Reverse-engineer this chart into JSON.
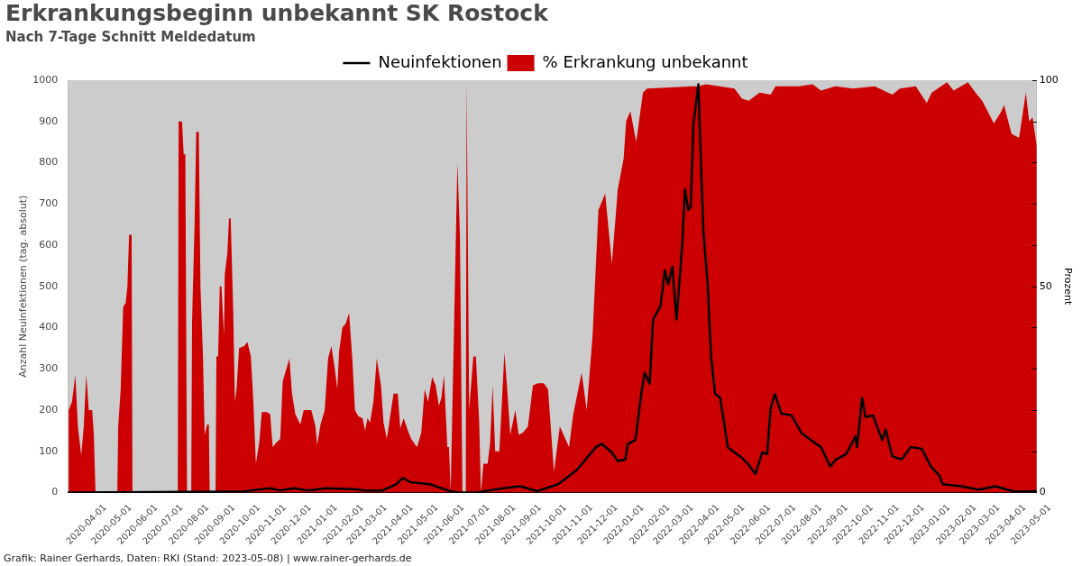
{
  "chart_data": {
    "type": "line",
    "title": "Erkrankungsbeginn unbekannt SK Rostock",
    "subtitle": "Nach 7-Tage Schnitt Meldedatum",
    "ylabel": "Anzahl Neuinfektionen (tag. absolut)",
    "y2label": "Prozent",
    "annotations": [
      "Grafik: Rainer Gerhards, Daten: RKI (Stand: 2023-05-08) | www.rainer-gerhards.de"
    ],
    "xlim": [
      "2020-03-10",
      "2023-05-08"
    ],
    "xticks": [
      "2020-04-01",
      "2020-05-01",
      "2020-06-01",
      "2020-07-01",
      "2020-08-01",
      "2020-09-01",
      "2020-10-01",
      "2020-11-01",
      "2020-12-01",
      "2021-01-01",
      "2021-02-01",
      "2021-03-01",
      "2021-04-01",
      "2021-05-01",
      "2021-06-01",
      "2021-07-01",
      "2021-08-01",
      "2021-09-01",
      "2021-10-01",
      "2021-11-01",
      "2021-12-01",
      "2022-01-01",
      "2022-02-01",
      "2022-03-01",
      "2022-04-01",
      "2022-05-01",
      "2022-06-01",
      "2022-07-01",
      "2022-08-01",
      "2022-09-01",
      "2022-10-01",
      "2022-11-01",
      "2022-12-01",
      "2023-01-01",
      "2023-02-01",
      "2023-03-01",
      "2023-04-01",
      "2023-05-01"
    ],
    "ylim": [
      0,
      1000
    ],
    "yticks": [
      0,
      100,
      200,
      300,
      400,
      500,
      600,
      700,
      800,
      900,
      1000
    ],
    "y2lim": [
      0,
      100
    ],
    "y2ticks": [
      0,
      {
        "value": 10,
        "label": null
      },
      {
        "value": 20,
        "label": null
      },
      {
        "value": 30,
        "label": null
      },
      {
        "value": 40,
        "label": null
      },
      50,
      {
        "value": 60,
        "label": null
      },
      {
        "value": 70,
        "label": null
      },
      {
        "value": 80,
        "label": null
      },
      {
        "value": 90,
        "label": null
      },
      100
    ],
    "legend": "top",
    "marker": "none",
    "grid": false,
    "series": [
      {
        "name": "Neuinfektionen",
        "type": "line",
        "color": "#000000",
        "x": [
          "2020-03-10",
          "2020-10-04",
          "2020-10-15",
          "2020-11-06",
          "2020-11-18",
          "2020-12-04",
          "2020-12-21",
          "2021-01-12",
          "2021-02-15",
          "2021-02-26",
          "2021-03-20",
          "2021-04-05",
          "2021-04-13",
          "2021-04-22",
          "2021-05-15",
          "2021-06-06",
          "2021-06-17",
          "2021-07-09",
          "2021-08-13",
          "2021-08-31",
          "2021-09-20",
          "2021-10-15",
          "2021-11-06",
          "2021-11-13",
          "2021-11-29",
          "2021-12-06",
          "2021-12-18",
          "2021-12-25",
          "2022-01-03",
          "2022-01-06",
          "2022-01-15",
          "2022-01-22",
          "2022-01-26",
          "2022-02-01",
          "2022-02-05",
          "2022-02-14",
          "2022-02-19",
          "2022-02-23",
          "2022-02-28",
          "2022-03-05",
          "2022-03-12",
          "2022-03-15",
          "2022-03-19",
          "2022-03-22",
          "2022-03-25",
          "2022-03-31",
          "2022-04-02",
          "2022-04-06",
          "2022-04-11",
          "2022-04-15",
          "2022-04-20",
          "2022-04-26",
          "2022-05-05",
          "2022-05-13",
          "2022-05-22",
          "2022-05-30",
          "2022-06-07",
          "2022-06-15",
          "2022-06-21",
          "2022-06-25",
          "2022-06-30",
          "2022-07-08",
          "2022-07-20",
          "2022-08-01",
          "2022-08-12",
          "2022-08-24",
          "2022-09-04",
          "2022-09-11",
          "2022-09-23",
          "2022-10-04",
          "2022-10-06",
          "2022-10-12",
          "2022-10-16",
          "2022-10-25",
          "2022-11-05",
          "2022-11-09",
          "2022-11-17",
          "2022-11-28",
          "2022-12-09",
          "2022-12-22",
          "2023-01-02",
          "2023-01-12",
          "2023-01-16",
          "2023-02-07",
          "2023-02-28",
          "2023-03-20",
          "2023-04-03",
          "2023-04-12",
          "2023-05-08"
        ],
        "values": [
          0,
          2,
          5,
          10,
          5,
          10,
          5,
          10,
          8,
          5,
          5,
          20,
          35,
          25,
          20,
          5,
          0,
          0,
          11,
          15,
          3,
          20,
          54,
          71,
          110,
          118,
          97,
          76,
          80,
          118,
          127,
          239,
          290,
          264,
          419,
          453,
          539,
          505,
          548,
          419,
          608,
          736,
          685,
          694,
          891,
          990,
          861,
          633,
          505,
          333,
          239,
          230,
          110,
          97,
          84,
          67,
          45,
          97,
          93,
          204,
          239,
          191,
          187,
          144,
          127,
          110,
          63,
          80,
          93,
          136,
          110,
          230,
          183,
          187,
          127,
          153,
          88,
          80,
          110,
          106,
          63,
          41,
          20,
          15,
          7,
          15,
          7,
          2,
          3
        ]
      },
      {
        "name": "% Erkrankung unbekannt",
        "type": "area",
        "axis": "y2",
        "color": "#cc0000",
        "x": [
          "2020-03-11",
          "2020-03-15",
          "2020-03-19",
          "2020-03-22",
          "2020-03-26",
          "2020-03-29",
          "2020-04-01",
          "2020-04-04",
          "2020-04-08",
          "2020-04-10",
          "2020-04-12",
          "2020-05-08",
          "2020-05-09",
          "2020-05-12",
          "2020-05-15",
          "2020-05-18",
          "2020-05-20",
          "2020-05-22",
          "2020-05-25",
          "2020-05-26",
          "2020-07-19",
          "2020-07-20",
          "2020-07-24",
          "2020-07-26",
          "2020-07-28",
          "2020-07-30",
          "2020-08-04",
          "2020-08-05",
          "2020-08-08",
          "2020-08-10",
          "2020-08-13",
          "2020-08-15",
          "2020-08-18",
          "2020-08-20",
          "2020-08-23",
          "2020-08-25",
          "2020-08-26",
          "2020-09-02",
          "2020-09-03",
          "2020-09-05",
          "2020-09-07",
          "2020-09-09",
          "2020-09-12",
          "2020-09-13",
          "2020-09-16",
          "2020-09-18",
          "2020-09-20",
          "2020-09-23",
          "2020-09-25",
          "2020-09-27",
          "2020-09-30",
          "2020-10-06",
          "2020-10-10",
          "2020-10-14",
          "2020-10-17",
          "2020-10-20",
          "2020-10-24",
          "2020-10-27",
          "2020-11-02",
          "2020-11-06",
          "2020-11-09",
          "2020-11-13",
          "2020-11-18",
          "2020-11-21",
          "2020-11-29",
          "2020-12-02",
          "2020-12-06",
          "2020-12-12",
          "2020-12-16",
          "2020-12-25",
          "2020-12-30",
          "2021-01-01",
          "2021-01-05",
          "2021-01-10",
          "2021-01-14",
          "2021-01-18",
          "2021-01-22",
          "2021-01-25",
          "2021-01-27",
          "2021-01-31",
          "2021-02-04",
          "2021-02-08",
          "2021-02-12",
          "2021-02-15",
          "2021-02-19",
          "2021-02-24",
          "2021-02-27",
          "2021-03-02",
          "2021-03-05",
          "2021-03-09",
          "2021-03-13",
          "2021-03-18",
          "2021-03-21",
          "2021-03-25",
          "2021-03-30",
          "2021-04-02",
          "2021-04-07",
          "2021-04-10",
          "2021-04-14",
          "2021-04-19",
          "2021-04-23",
          "2021-04-28",
          "2021-04-30",
          "2021-05-05",
          "2021-05-09",
          "2021-05-13",
          "2021-05-18",
          "2021-05-22",
          "2021-05-26",
          "2021-05-29",
          "2021-06-01",
          "2021-06-05",
          "2021-06-07",
          "2021-06-09",
          "2021-06-11",
          "2021-06-17",
          "2021-06-20",
          "2021-06-23",
          "2021-06-27",
          "2021-06-28",
          "2021-07-01",
          "2021-07-06",
          "2021-07-09",
          "2021-07-13",
          "2021-07-15",
          "2021-07-18",
          "2021-07-23",
          "2021-07-26",
          "2021-07-29",
          "2021-08-01",
          "2021-08-06",
          "2021-08-12",
          "2021-08-15",
          "2021-08-19",
          "2021-08-25",
          "2021-08-29",
          "2021-09-03",
          "2021-09-09",
          "2021-09-15",
          "2021-09-21",
          "2021-09-28",
          "2021-10-03",
          "2021-10-10",
          "2021-10-17",
          "2021-10-28",
          "2021-11-02",
          "2021-11-12",
          "2021-11-18",
          "2021-11-25",
          "2021-12-02",
          "2021-12-10",
          "2021-12-18",
          "2021-12-25",
          "2022-01-01",
          "2022-01-04",
          "2022-01-09",
          "2022-01-16",
          "2022-01-24",
          "2022-01-29",
          "2022-03-23",
          "2022-03-31",
          "2022-04-09",
          "2022-05-13",
          "2022-05-22",
          "2022-05-30",
          "2022-06-12",
          "2022-06-25",
          "2022-07-01",
          "2022-07-29",
          "2022-08-14",
          "2022-08-24",
          "2022-09-10",
          "2022-10-01",
          "2022-10-27",
          "2022-11-17",
          "2022-11-26",
          "2022-12-15",
          "2022-12-28",
          "2023-01-03",
          "2023-01-21",
          "2023-01-29",
          "2023-02-15",
          "2023-02-24",
          "2023-03-04",
          "2023-03-18",
          "2023-03-27",
          "2023-03-30",
          "2023-04-08",
          "2023-04-17",
          "2023-04-25",
          "2023-04-29",
          "2023-05-03",
          "2023-05-08"
        ],
        "values": [
          20,
          22,
          28.5,
          16,
          9,
          16,
          28.5,
          20,
          20,
          14,
          0,
          0,
          16,
          25,
          45,
          46,
          50,
          62.5,
          62.5,
          0,
          0,
          90,
          90,
          82,
          82,
          0,
          0,
          41.5,
          65,
          87.5,
          87.5,
          50,
          33,
          14,
          16.5,
          16.5,
          0,
          0,
          33,
          33,
          50,
          50,
          38,
          53,
          58,
          66.5,
          66.5,
          44,
          22,
          25,
          35,
          35.5,
          36.5,
          33,
          22,
          7,
          12,
          19.5,
          19.5,
          19,
          11,
          12,
          13,
          27,
          32.5,
          24,
          19,
          16.5,
          20,
          20,
          16,
          11.5,
          16.5,
          20,
          32.5,
          35.5,
          30,
          25,
          34,
          40,
          41,
          43.5,
          32,
          20,
          18.5,
          18,
          15,
          18,
          17,
          22,
          32.5,
          26,
          17,
          13,
          20,
          24,
          24,
          15.5,
          18,
          15,
          13,
          11.5,
          11,
          14.5,
          25,
          22,
          28,
          26,
          21,
          23,
          28.5,
          11,
          11,
          0,
          20,
          80,
          62.5,
          0,
          0,
          100,
          20,
          33,
          33,
          17,
          0,
          7,
          7,
          12,
          26,
          10,
          10,
          34,
          26,
          14,
          20,
          14,
          14.5,
          16,
          26,
          26.5,
          26.5,
          25,
          5,
          16,
          11,
          19,
          29,
          20,
          38,
          68.5,
          72.5,
          55.5,
          73.5,
          81,
          90,
          92.5,
          85,
          97,
          98,
          98.5,
          98.5,
          99,
          98,
          95.5,
          95,
          97,
          96.5,
          98.5,
          98.5,
          99,
          97.5,
          98.5,
          98,
          98.5,
          96.5,
          98,
          98.5,
          94.5,
          97,
          99.5,
          97.5,
          99.5,
          97,
          95,
          89.5,
          92.5,
          94,
          87,
          86,
          97,
          90,
          91,
          84
        ]
      }
    ]
  }
}
